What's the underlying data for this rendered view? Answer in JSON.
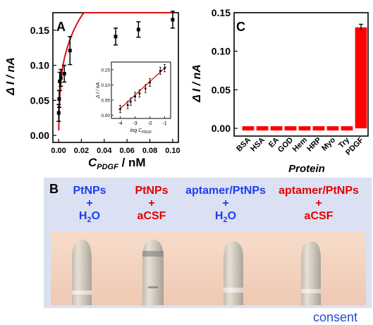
{
  "panel_labels": {
    "a": "A",
    "b": "B",
    "c": "C"
  },
  "chart_data": [
    {
      "id": "A",
      "type": "scatter",
      "title": "",
      "xlabel_main": "C",
      "xlabel_sub": "PDGF",
      "xlabel_unit": " / nM",
      "ylabel": "Δ I / nA",
      "xlim": [
        -0.005,
        0.105
      ],
      "ylim": [
        -0.01,
        0.175
      ],
      "xticks": [
        "0.00",
        "0.02",
        "0.04",
        "0.06",
        "0.08",
        "0.10"
      ],
      "yticks": [
        "0.00",
        "0.05",
        "0.10",
        "0.15"
      ],
      "points": [
        {
          "x": 0.0001,
          "y": 0.032,
          "err": 0.012
        },
        {
          "x": 0.0005,
          "y": 0.052,
          "err": 0.012
        },
        {
          "x": 0.001,
          "y": 0.077,
          "err": 0.013
        },
        {
          "x": 0.002,
          "y": 0.082,
          "err": 0.012
        },
        {
          "x": 0.005,
          "y": 0.088,
          "err": 0.012
        },
        {
          "x": 0.01,
          "y": 0.121,
          "err": 0.02
        },
        {
          "x": 0.05,
          "y": 0.141,
          "err": 0.012
        },
        {
          "x": 0.07,
          "y": 0.151,
          "err": 0.011
        },
        {
          "x": 0.1,
          "y": 0.165,
          "err": 0.012
        }
      ],
      "fit_color": "#e01010",
      "inset": {
        "xlabel_main": "log C",
        "xlabel_sub": "PDGF",
        "ylabel": "Δ I / nA",
        "xlim": [
          -4.6,
          -0.6
        ],
        "ylim": [
          -0.01,
          0.175
        ],
        "xticks": [
          "-4",
          "-3",
          "-2",
          "-1"
        ],
        "yticks": [
          "0.00",
          "0.05",
          "0.10",
          "0.15"
        ],
        "points": [
          {
            "x": -4,
            "y": 0.021,
            "err": 0.012
          },
          {
            "x": -3.5,
            "y": 0.034,
            "err": 0.012
          },
          {
            "x": -3.3,
            "y": 0.045,
            "err": 0.012
          },
          {
            "x": -3.0,
            "y": 0.062,
            "err": 0.014
          },
          {
            "x": -2.7,
            "y": 0.072,
            "err": 0.012
          },
          {
            "x": -2.3,
            "y": 0.088,
            "err": 0.013
          },
          {
            "x": -2.0,
            "y": 0.108,
            "err": 0.013
          },
          {
            "x": -1.3,
            "y": 0.146,
            "err": 0.012
          },
          {
            "x": -1.0,
            "y": 0.155,
            "err": 0.012
          }
        ]
      }
    },
    {
      "id": "C",
      "type": "bar",
      "title": "",
      "xlabel": "Protein",
      "ylabel": "Δ I / nA",
      "ylim": [
        -0.01,
        0.15
      ],
      "yticks": [
        "0.00",
        "0.05",
        "0.10",
        "0.15"
      ],
      "categories": [
        "BSA",
        "HSA",
        "EA",
        "GOD",
        "Hem",
        "HRP",
        "Myo",
        "Try",
        "PDGF"
      ],
      "values": [
        0.0,
        0.0,
        0.0,
        0.0,
        0.0,
        0.0,
        0.0,
        0.0,
        0.131
      ],
      "errors": [
        0,
        0,
        0,
        0,
        0,
        0,
        0,
        0,
        0.004
      ],
      "bar_color": "#ff0000"
    }
  ],
  "panel_b": {
    "samples": [
      {
        "line1": "PtNPs",
        "line2": "+",
        "line3_main": "H",
        "line3_sub": "2",
        "line3_rest": "O",
        "color": "blue"
      },
      {
        "line1": "PtNPs",
        "line2": "+",
        "line3_main": "aCSF",
        "line3_sub": "",
        "line3_rest": "",
        "color": "red"
      },
      {
        "line1": "aptamer/PtNPs",
        "line2": "+",
        "line3_main": "H",
        "line3_sub": "2",
        "line3_rest": "O",
        "color": "blue"
      },
      {
        "line1": "aptamer/PtNPs",
        "line2": "+",
        "line3_main": "aCSF",
        "line3_sub": "",
        "line3_rest": "",
        "color": "red"
      }
    ]
  },
  "watermark": "consent"
}
